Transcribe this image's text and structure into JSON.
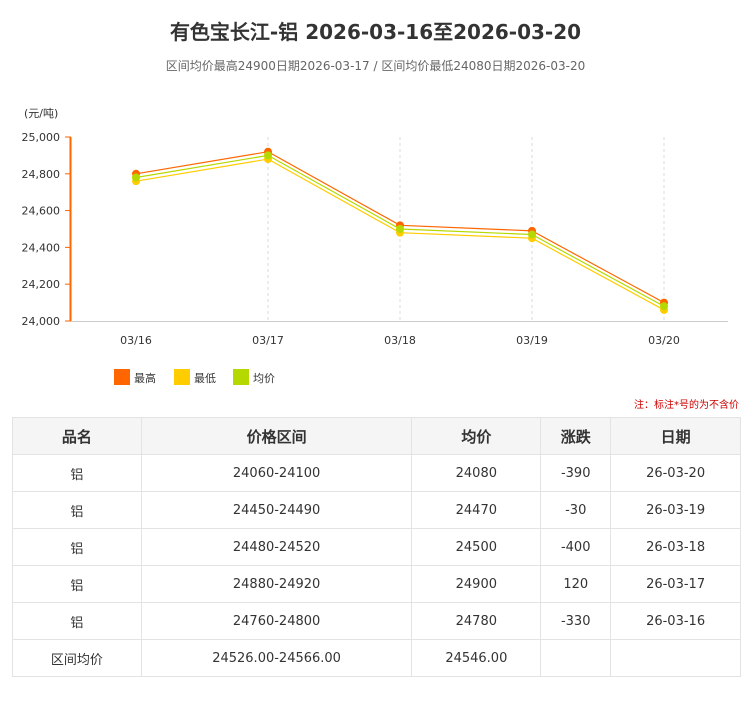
{
  "header": {
    "title": "有色宝长江-铝 2026-03-16至2026-03-20",
    "subtitle": "区间均价最高24900日期2026-03-17 / 区间均价最低24080日期2026-03-20"
  },
  "chart_data": {
    "type": "line",
    "ylabel": "(元/吨)",
    "xlabel": "",
    "categories": [
      "03/16",
      "03/17",
      "03/18",
      "03/19",
      "03/20"
    ],
    "ylim": [
      24000,
      25000
    ],
    "yticks": [
      "24,000",
      "24,200",
      "24,400",
      "24,600",
      "24,800",
      "25,000"
    ],
    "ytick_values": [
      24000,
      24200,
      24400,
      24600,
      24800,
      25000
    ],
    "grid": "vertical-dashed",
    "legend_position": "bottom-left",
    "series": [
      {
        "name": "最高",
        "values": [
          24800,
          24920,
          24520,
          24490,
          24100
        ],
        "color": "#ff6600"
      },
      {
        "name": "最低",
        "values": [
          24760,
          24880,
          24480,
          24450,
          24060
        ],
        "color": "#ffcc00"
      },
      {
        "name": "均价",
        "values": [
          24780,
          24900,
          24500,
          24470,
          24080
        ],
        "color": "#b5d900"
      }
    ]
  },
  "note": "注：标注*号的为不含价",
  "table": {
    "headers": [
      "品名",
      "价格区间",
      "均价",
      "涨跌",
      "日期"
    ],
    "rows": [
      [
        "铝",
        "24060-24100",
        "24080",
        "-390",
        "26-03-20"
      ],
      [
        "铝",
        "24450-24490",
        "24470",
        "-30",
        "26-03-19"
      ],
      [
        "铝",
        "24480-24520",
        "24500",
        "-400",
        "26-03-18"
      ],
      [
        "铝",
        "24880-24920",
        "24900",
        "120",
        "26-03-17"
      ],
      [
        "铝",
        "24760-24800",
        "24780",
        "-330",
        "26-03-16"
      ]
    ],
    "summary": [
      "区间均价",
      "24526.00-24566.00",
      "24546.00",
      "",
      ""
    ]
  }
}
